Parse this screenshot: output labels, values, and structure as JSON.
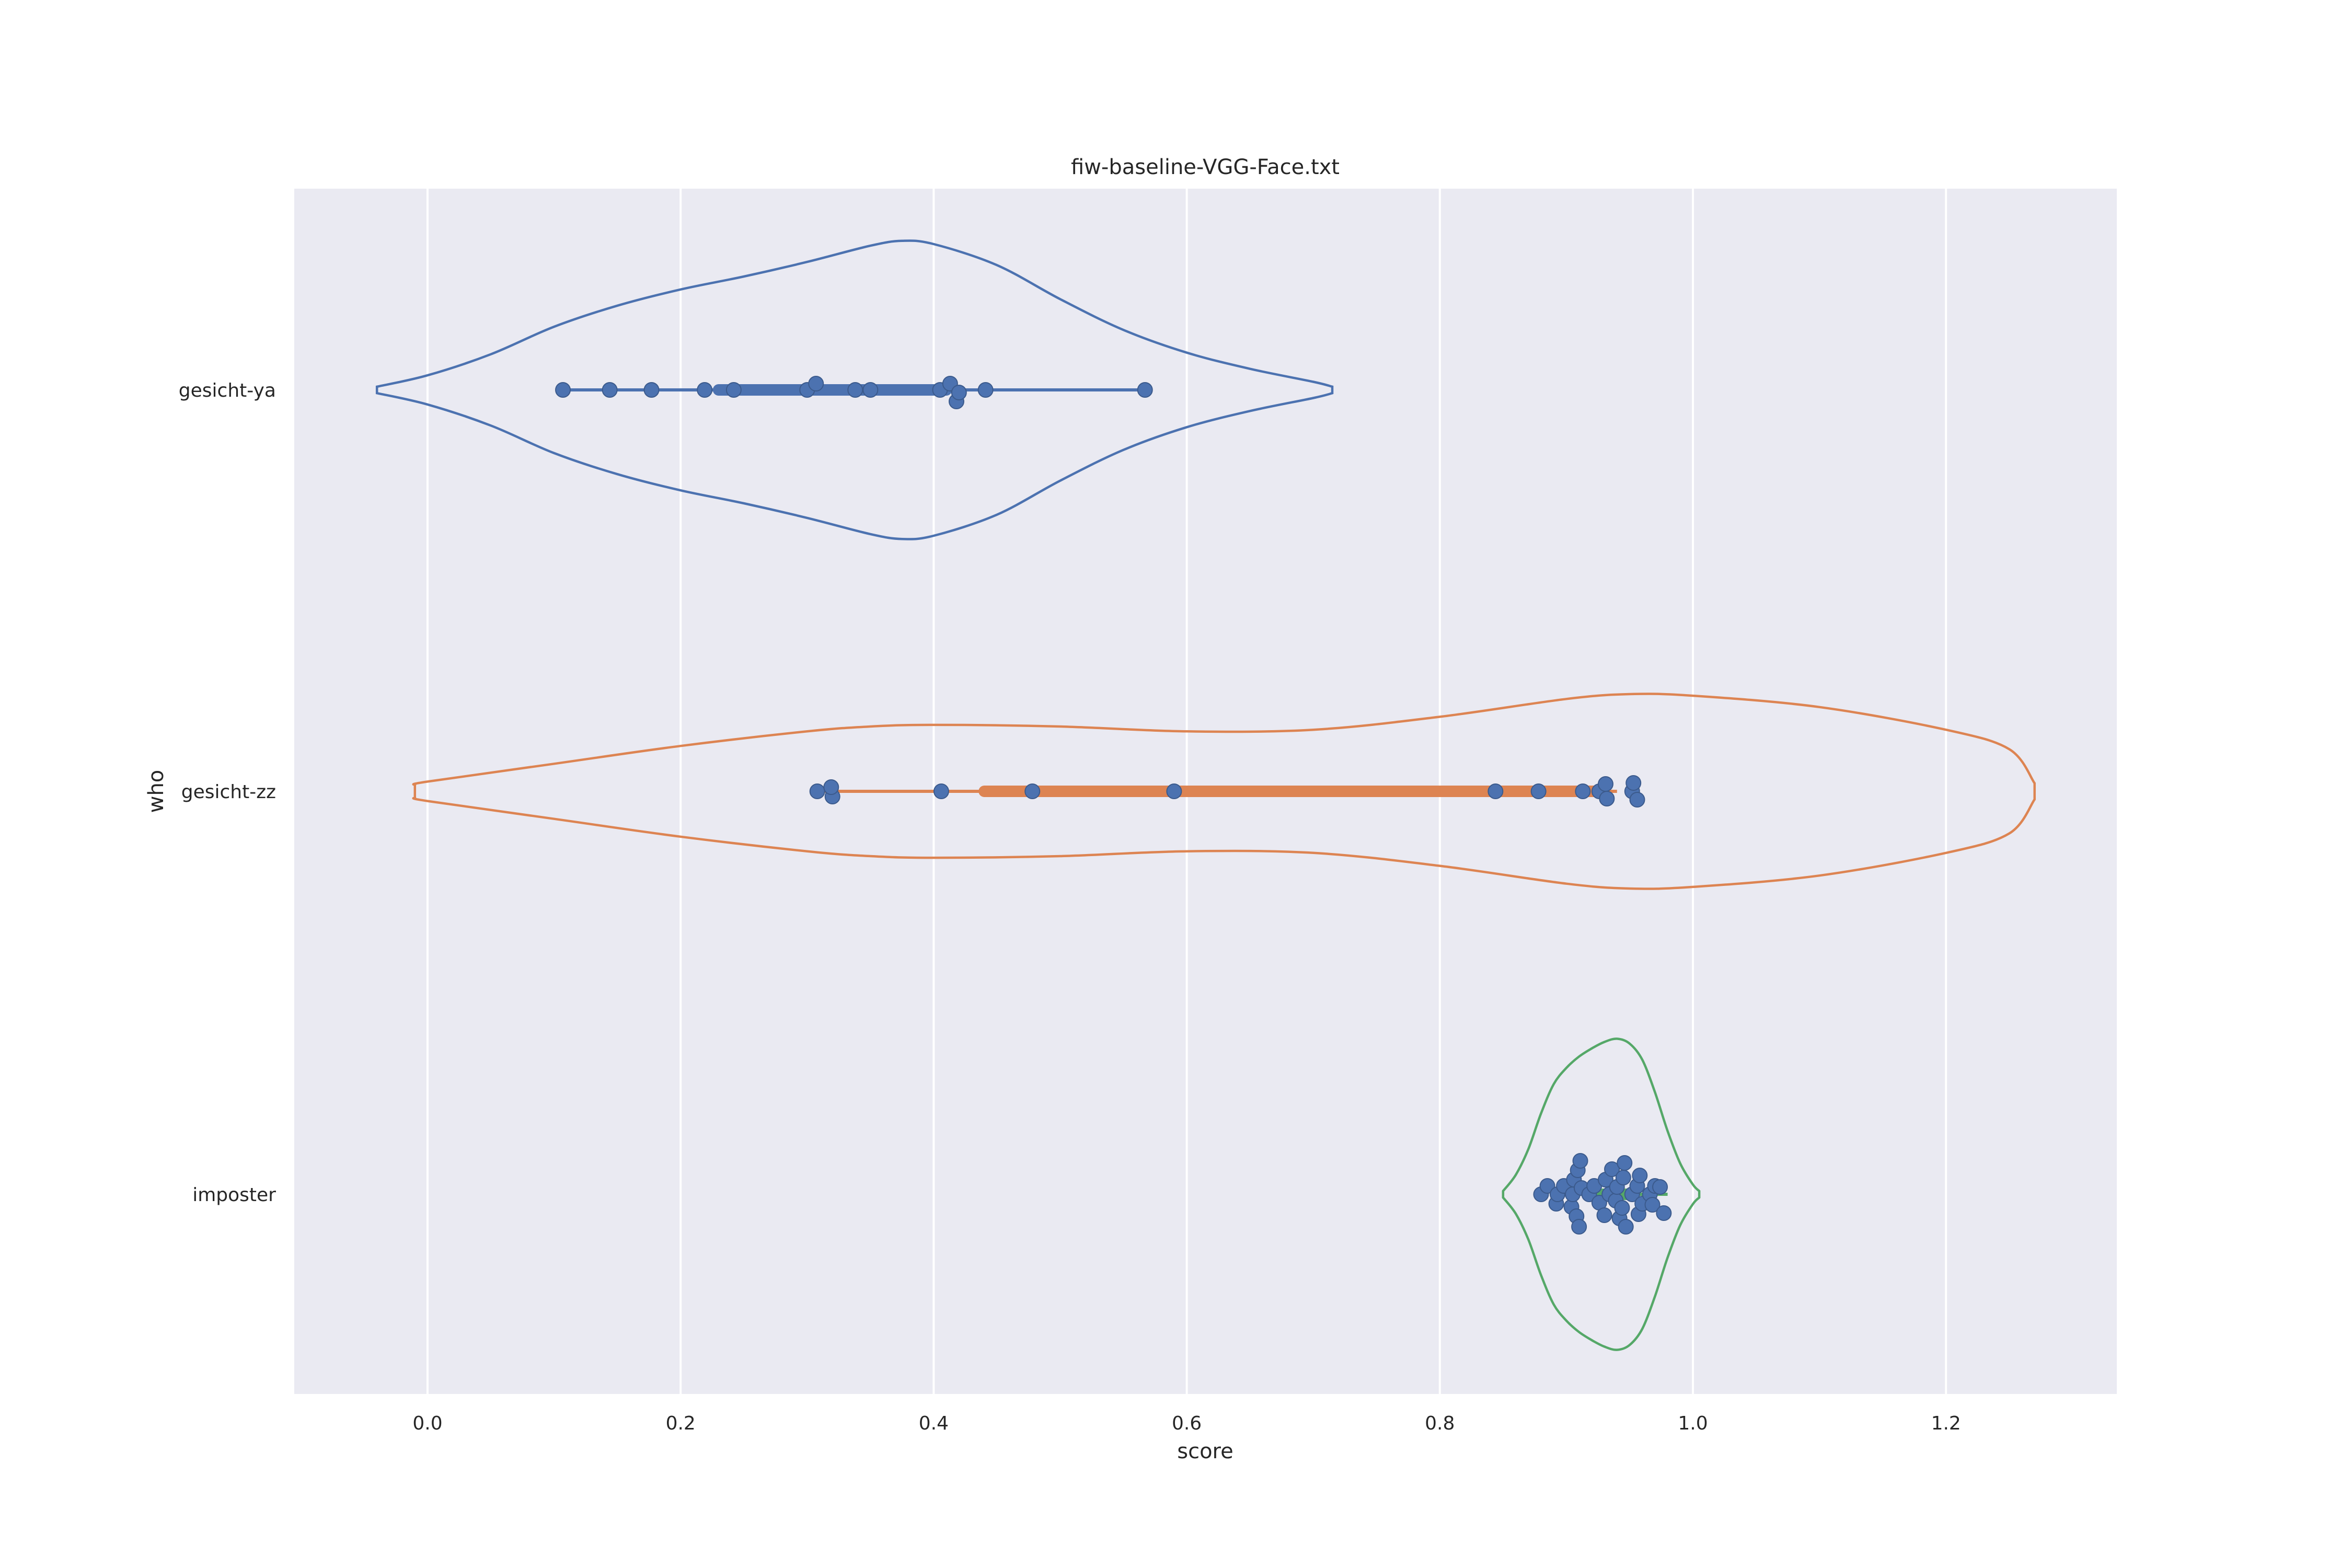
{
  "chart_data": {
    "type": "violin",
    "title": "fiw-baseline-VGG-Face.txt",
    "xlabel": "score",
    "ylabel": "who",
    "xlim": [
      -0.105,
      1.335
    ],
    "x_ticks": [
      0.0,
      0.2,
      0.4,
      0.6,
      0.8,
      1.0,
      1.2
    ],
    "x_tick_labels": [
      "0.0",
      "0.2",
      "0.4",
      "0.6",
      "0.8",
      "1.0",
      "1.2"
    ],
    "grid": "vertical",
    "categories": [
      "gesicht-ya",
      "gesicht-zz",
      "imposter"
    ],
    "series": [
      {
        "color": "#4c72b0",
        "violin": {
          "x_min": -0.04,
          "x_max": 0.715,
          "shape": [
            [
              -0.04,
              0.02
            ],
            [
              0.0,
              0.09
            ],
            [
              0.05,
              0.22
            ],
            [
              0.1,
              0.39
            ],
            [
              0.15,
              0.52
            ],
            [
              0.2,
              0.62
            ],
            [
              0.25,
              0.7
            ],
            [
              0.3,
              0.79
            ],
            [
              0.35,
              0.89
            ],
            [
              0.375,
              0.92
            ],
            [
              0.4,
              0.9
            ],
            [
              0.45,
              0.77
            ],
            [
              0.5,
              0.56
            ],
            [
              0.55,
              0.37
            ],
            [
              0.6,
              0.23
            ],
            [
              0.65,
              0.13
            ],
            [
              0.7,
              0.05
            ],
            [
              0.715,
              0.02
            ]
          ]
        },
        "range": [
          0.107,
          0.567
        ],
        "iqr": [
          0.23,
          0.41
        ],
        "points": [
          [
            0.107,
            0
          ],
          [
            0.144,
            0
          ],
          [
            0.177,
            0
          ],
          [
            0.219,
            0
          ],
          [
            0.242,
            0
          ],
          [
            0.3,
            0
          ],
          [
            0.307,
            -0.6
          ],
          [
            0.338,
            0
          ],
          [
            0.35,
            0
          ],
          [
            0.405,
            0
          ],
          [
            0.413,
            -0.6
          ],
          [
            0.418,
            1.1
          ],
          [
            0.42,
            0.25
          ],
          [
            0.441,
            0
          ],
          [
            0.567,
            0
          ]
        ]
      },
      {
        "color": "#dd8452",
        "violin": {
          "x_min": -0.01,
          "x_max": 1.27,
          "shape": [
            [
              -0.01,
              0.04
            ],
            [
              0.0,
              0.06
            ],
            [
              0.1,
              0.17
            ],
            [
              0.2,
              0.28
            ],
            [
              0.3,
              0.37
            ],
            [
              0.35,
              0.4
            ],
            [
              0.4,
              0.41
            ],
            [
              0.5,
              0.4
            ],
            [
              0.6,
              0.37
            ],
            [
              0.7,
              0.38
            ],
            [
              0.8,
              0.46
            ],
            [
              0.9,
              0.57
            ],
            [
              0.95,
              0.6
            ],
            [
              1.0,
              0.59
            ],
            [
              1.1,
              0.52
            ],
            [
              1.2,
              0.38
            ],
            [
              1.25,
              0.26
            ],
            [
              1.27,
              0.05
            ]
          ]
        },
        "range": [
          0.31,
          0.94
        ],
        "iqr": [
          0.44,
          0.93
        ],
        "points": [
          [
            0.308,
            0
          ],
          [
            0.32,
            0.5
          ],
          [
            0.319,
            -0.4
          ],
          [
            0.406,
            0
          ],
          [
            0.478,
            0
          ],
          [
            0.59,
            0
          ],
          [
            0.844,
            0
          ],
          [
            0.878,
            0
          ],
          [
            0.913,
            0
          ],
          [
            0.926,
            0
          ],
          [
            0.932,
            0.7
          ],
          [
            0.931,
            -0.7
          ],
          [
            0.952,
            0
          ],
          [
            0.956,
            0.8
          ],
          [
            0.953,
            -0.8
          ]
        ]
      },
      {
        "color": "#55a868",
        "violin": {
          "x_min": 0.85,
          "x_max": 1.005,
          "shape": [
            [
              0.85,
              0.02
            ],
            [
              0.86,
              0.12
            ],
            [
              0.87,
              0.28
            ],
            [
              0.88,
              0.5
            ],
            [
              0.89,
              0.68
            ],
            [
              0.9,
              0.78
            ],
            [
              0.91,
              0.85
            ],
            [
              0.92,
              0.9
            ],
            [
              0.93,
              0.94
            ],
            [
              0.94,
              0.96
            ],
            [
              0.95,
              0.93
            ],
            [
              0.96,
              0.83
            ],
            [
              0.97,
              0.63
            ],
            [
              0.98,
              0.39
            ],
            [
              0.99,
              0.19
            ],
            [
              1.0,
              0.06
            ],
            [
              1.005,
              0.02
            ]
          ]
        },
        "range": [
          0.9,
          0.98
        ],
        "iqr": [
          0.92,
          0.95
        ],
        "points": [
          [
            0.88,
            0
          ],
          [
            0.885,
            -0.8
          ],
          [
            0.892,
            0.9
          ],
          [
            0.893,
            0
          ],
          [
            0.898,
            -0.8
          ],
          [
            0.904,
            1.2
          ],
          [
            0.905,
            0
          ],
          [
            0.906,
            -1.4
          ],
          [
            0.908,
            2.1
          ],
          [
            0.909,
            -2.3
          ],
          [
            0.91,
            3.1
          ],
          [
            0.911,
            -3.2
          ],
          [
            0.912,
            -0.6
          ],
          [
            0.918,
            0
          ],
          [
            0.922,
            -0.8
          ],
          [
            0.926,
            0.8
          ],
          [
            0.93,
            2.0
          ],
          [
            0.931,
            -1.4
          ],
          [
            0.934,
            0
          ],
          [
            0.936,
            -2.4
          ],
          [
            0.939,
            0.6
          ],
          [
            0.94,
            -0.7
          ],
          [
            0.942,
            2.3
          ],
          [
            0.944,
            1.3
          ],
          [
            0.945,
            -1.6
          ],
          [
            0.946,
            -3.0
          ],
          [
            0.947,
            3.1
          ],
          [
            0.952,
            0
          ],
          [
            0.956,
            -0.8
          ],
          [
            0.957,
            1.9
          ],
          [
            0.958,
            -1.8
          ],
          [
            0.96,
            0.9
          ],
          [
            0.966,
            0
          ],
          [
            0.968,
            1.0
          ],
          [
            0.97,
            -0.8
          ],
          [
            0.974,
            -0.7
          ],
          [
            0.977,
            1.8
          ]
        ]
      }
    ]
  }
}
